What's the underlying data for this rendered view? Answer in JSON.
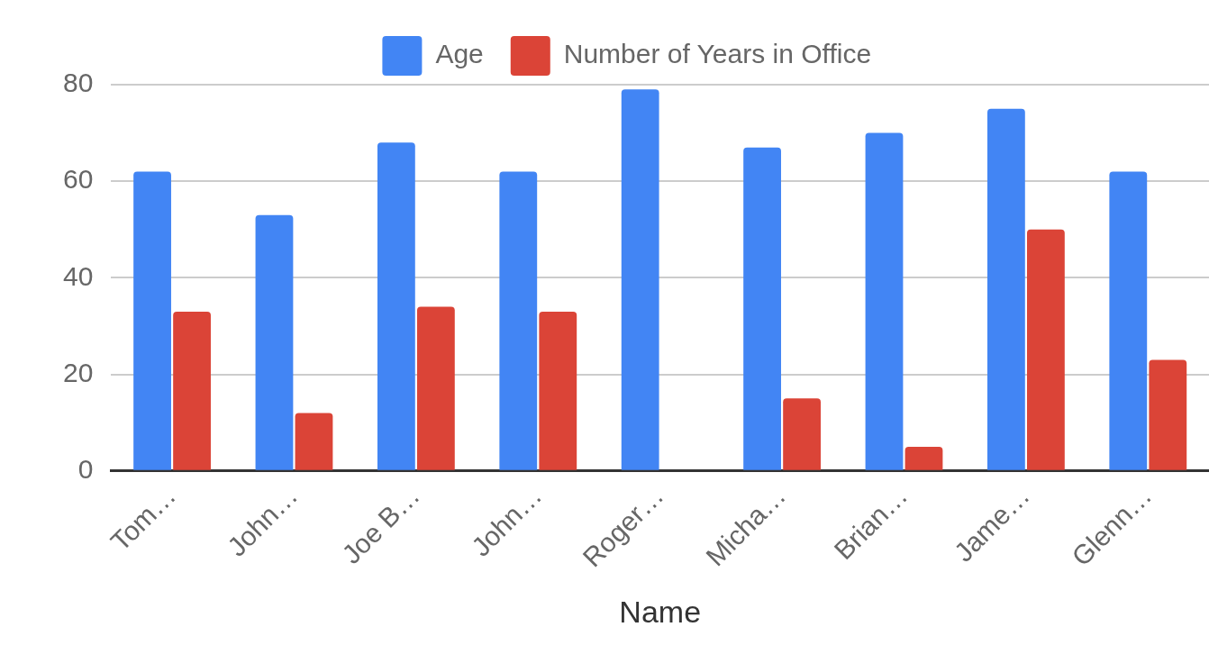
{
  "chart_data": {
    "type": "bar",
    "xlabel": "Name",
    "categories": [
      "Tom…",
      "John…",
      "Joe B…",
      "John…",
      "Roger…",
      "Micha…",
      "Brian…",
      "Jame…",
      "Glenn…"
    ],
    "series": [
      {
        "name": "Age",
        "color": "#4285f4",
        "values": [
          62,
          53,
          68,
          62,
          79,
          67,
          70,
          75,
          62
        ]
      },
      {
        "name": "Number of Years in Office",
        "color": "#db4437",
        "values": [
          33,
          12,
          34,
          33,
          0,
          15,
          5,
          50,
          23
        ]
      }
    ],
    "ylim": [
      0,
      80
    ],
    "yticks": [
      0,
      20,
      40,
      60,
      80
    ],
    "grid": "y",
    "legend": "top"
  }
}
